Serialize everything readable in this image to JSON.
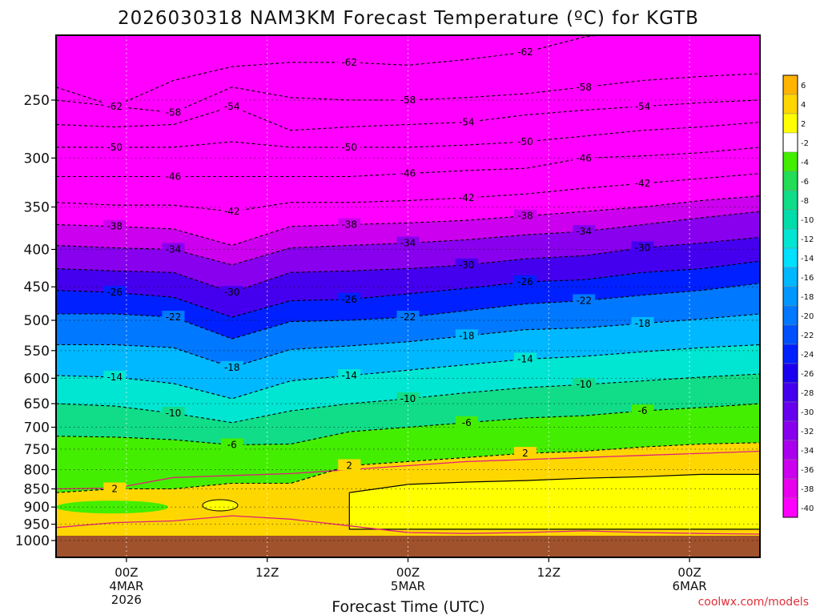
{
  "chart_data": {
    "type": "heatmap",
    "title": "2026030318 NAM3KM Forecast Temperature (ºC) for KGTB",
    "xlabel": "Forecast Time (UTC)",
    "ylabel": "",
    "credit": "coolwx.com/models",
    "y_axis": {
      "scale": "log",
      "reversed": true,
      "ylim": [
        1000,
        200
      ],
      "tick_labels": [
        "250",
        "300",
        "350",
        "400",
        "450",
        "500",
        "550",
        "600",
        "650",
        "700",
        "750",
        "800",
        "850",
        "900",
        "950",
        "1000"
      ],
      "tick_values": [
        250,
        300,
        350,
        400,
        450,
        500,
        550,
        600,
        650,
        700,
        750,
        800,
        850,
        900,
        950,
        1000
      ]
    },
    "x_axis": {
      "range_hours": [
        0,
        60
      ],
      "ticks": [
        {
          "hour": 6,
          "lines": [
            "00Z",
            "4MAR",
            "2026"
          ]
        },
        {
          "hour": 18,
          "lines": [
            "12Z"
          ]
        },
        {
          "hour": 30,
          "lines": [
            "00Z",
            "5MAR"
          ]
        },
        {
          "hour": 42,
          "lines": [
            "12Z"
          ]
        },
        {
          "hour": 54,
          "lines": [
            "00Z",
            "6MAR"
          ]
        }
      ]
    },
    "colorbar": {
      "levels": [
        6,
        4,
        2,
        -2,
        -4,
        -6,
        -8,
        -10,
        -12,
        -14,
        -16,
        -18,
        -20,
        -22,
        -24,
        -26,
        -28,
        -30,
        -32,
        -34,
        -36,
        -38,
        -40
      ],
      "colors": [
        "#ffb400",
        "#ffd700",
        "#ffff00",
        "#ffffff",
        "#44ee00",
        "#22dd55",
        "#11dd88",
        "#00ddaa",
        "#00e6d2",
        "#00e0ff",
        "#00b8ff",
        "#0098ff",
        "#0078ff",
        "#0050ff",
        "#0020ff",
        "#1a00ee",
        "#4400ee",
        "#6600ee",
        "#8800ee",
        "#aa00ee",
        "#cc00ee",
        "#e800ee",
        "#ff00ff"
      ]
    },
    "isotherms": [
      {
        "label": "-62",
        "pressure": [
          240,
          255,
          235,
          225,
          222,
          222,
          224,
          220,
          215,
          205,
          200,
          200,
          200
        ]
      },
      {
        "label": "-58",
        "pressure": [
          250,
          255,
          260,
          240,
          248,
          250,
          250,
          248,
          245,
          240,
          235,
          232,
          230
        ]
      },
      {
        "label": "-54",
        "pressure": [
          270,
          272,
          270,
          255,
          275,
          272,
          270,
          268,
          262,
          258,
          255,
          252,
          250
        ]
      },
      {
        "label": "-50",
        "pressure": [
          290,
          290,
          290,
          285,
          290,
          290,
          290,
          288,
          285,
          280,
          275,
          272,
          268
        ]
      },
      {
        "label": "-46",
        "pressure": [
          318,
          318,
          318,
          318,
          318,
          318,
          315,
          312,
          310,
          300,
          298,
          295,
          290
        ]
      },
      {
        "label": "-42",
        "pressure": [
          345,
          348,
          348,
          355,
          345,
          345,
          343,
          340,
          336,
          330,
          325,
          320,
          315
        ]
      },
      {
        "label": "-38",
        "pressure": [
          370,
          372,
          375,
          395,
          372,
          370,
          368,
          365,
          360,
          355,
          350,
          343,
          338
        ]
      },
      {
        "label": "-34",
        "pressure": [
          395,
          398,
          400,
          420,
          398,
          395,
          392,
          388,
          382,
          378,
          370,
          362,
          355
        ]
      },
      {
        "label": "-30",
        "pressure": [
          425,
          428,
          430,
          458,
          430,
          428,
          425,
          420,
          412,
          408,
          398,
          392,
          385
        ]
      },
      {
        "label": "-26",
        "pressure": [
          455,
          458,
          465,
          495,
          470,
          468,
          460,
          452,
          443,
          440,
          430,
          425,
          415
        ]
      },
      {
        "label": "-22",
        "pressure": [
          490,
          490,
          495,
          530,
          502,
          500,
          495,
          485,
          475,
          470,
          462,
          455,
          445
        ]
      },
      {
        "label": "-18",
        "pressure": [
          540,
          540,
          545,
          580,
          548,
          542,
          535,
          525,
          515,
          512,
          505,
          498,
          490
        ]
      },
      {
        "label": "-14",
        "pressure": [
          595,
          598,
          610,
          640,
          605,
          595,
          585,
          575,
          565,
          560,
          552,
          545,
          540
        ]
      },
      {
        "label": "-10",
        "pressure": [
          650,
          655,
          670,
          690,
          665,
          650,
          640,
          628,
          618,
          612,
          605,
          598,
          592
        ]
      },
      {
        "label": "-6",
        "pressure": [
          720,
          722,
          728,
          740,
          738,
          710,
          700,
          690,
          680,
          675,
          665,
          658,
          650
        ]
      },
      {
        "label": "2",
        "pressure": [
          860,
          850,
          850,
          835,
          835,
          790,
          780,
          770,
          760,
          755,
          745,
          738,
          735
        ]
      }
    ],
    "features": [
      "surface (brown) below ~980 hPa",
      "warm layer (>0 ºC, yellow) 850-950 hPa from 5MAR",
      "magenta 0 ºC contour"
    ]
  }
}
